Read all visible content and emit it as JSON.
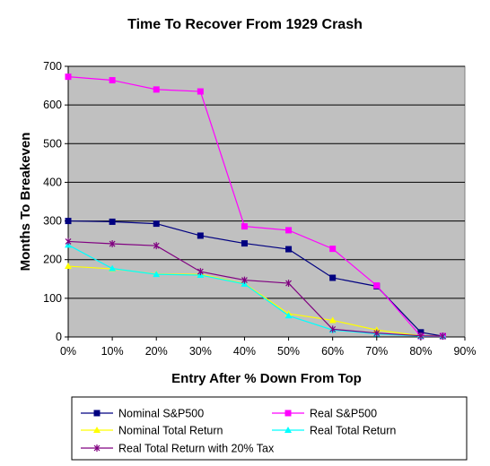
{
  "chart_data": {
    "type": "line",
    "title": "Time To Recover From 1929 Crash",
    "xlabel": "Entry After % Down From Top",
    "ylabel": "Months To Breakeven",
    "xlim": [
      0,
      90
    ],
    "ylim": [
      0,
      700
    ],
    "xticks": [
      "0%",
      "10%",
      "20%",
      "30%",
      "40%",
      "50%",
      "60%",
      "70%",
      "80%",
      "90%"
    ],
    "yticks": [
      "0",
      "100",
      "200",
      "300",
      "400",
      "500",
      "600",
      "700"
    ],
    "grid": "horizontal",
    "plot_background": "#c0c0c0",
    "legend_position": "bottom",
    "x": [
      0,
      10,
      20,
      30,
      40,
      50,
      60,
      70,
      80,
      85
    ],
    "series": [
      {
        "name": "Nominal S&P500",
        "color": "#000080",
        "marker": "square",
        "values": [
          300,
          298,
          293,
          262,
          242,
          227,
          153,
          131,
          12,
          2
        ]
      },
      {
        "name": "Real S&P500",
        "color": "#ff00ff",
        "marker": "square",
        "values": [
          673,
          664,
          640,
          635,
          286,
          276,
          228,
          133,
          2,
          2
        ]
      },
      {
        "name": "Nominal Total Return",
        "color": "#ffff00",
        "marker": "triangle",
        "values": [
          183,
          176,
          163,
          162,
          138,
          60,
          43,
          18,
          3,
          2
        ]
      },
      {
        "name": "Real Total Return",
        "color": "#00ffff",
        "marker": "triangle",
        "values": [
          238,
          177,
          162,
          160,
          137,
          55,
          18,
          8,
          2,
          2
        ]
      },
      {
        "name": "Real Total Return with 20% Tax",
        "color": "#800080",
        "marker": "star",
        "values": [
          247,
          241,
          236,
          169,
          147,
          139,
          20,
          10,
          3,
          2
        ]
      }
    ]
  }
}
